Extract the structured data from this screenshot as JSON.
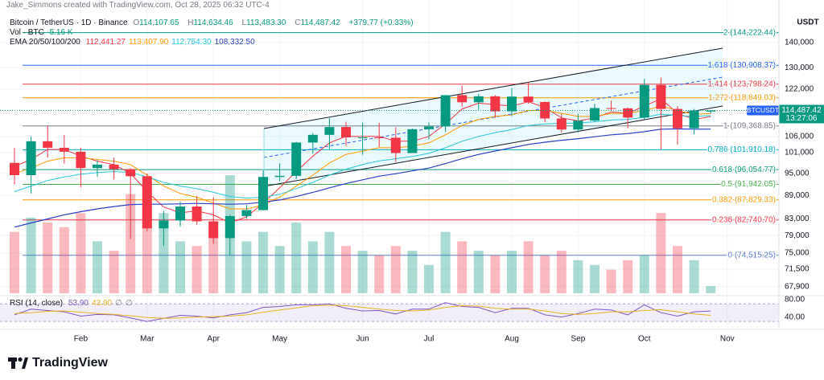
{
  "header": {
    "author": "Jake_Simmons created with TradingView.com, Oct 28, 2025 06:32 UTC-4"
  },
  "legend": {
    "symbol": "Bitcoin / TetherUS · 1D · Binance",
    "ohlc": [
      {
        "key": "O",
        "value": "114,107.65"
      },
      {
        "key": "H",
        "value": "114,634.46"
      },
      {
        "key": "L",
        "value": "113,483.30"
      },
      {
        "key": "C",
        "value": "114,487.42"
      }
    ],
    "change": "+379.77 (+0.33%)",
    "volume_name": "Vol · BTC",
    "volume_value": "5.16 K",
    "ema_name": "EMA 20/50/100/200",
    "ema_values": [
      {
        "value": "112,441.27",
        "color": "#f23645"
      },
      {
        "value": "113,407.90",
        "color": "#ff9800"
      },
      {
        "value": "112,754.30",
        "color": "#26c6da"
      },
      {
        "value": "108,332.50",
        "color": "#2a3fc9"
      }
    ],
    "rsi_name": "RSI (14, close)",
    "rsi_values": [
      {
        "value": "53.90",
        "color": "#7e57c2"
      },
      {
        "value": "43.90",
        "color": "#e6b422"
      },
      {
        "value": "∅",
        "color": "#787b86"
      },
      {
        "value": "∅",
        "color": "#787b86"
      }
    ]
  },
  "axis_unit": "USDT",
  "last_price": {
    "value": 114487.42,
    "label": "114,487.42",
    "symbol": "BTCUSDT",
    "countdown": "13:27:06"
  },
  "footer": {
    "brand": "TradingView"
  },
  "chart_data": [
    {
      "type": "candlestick",
      "categories": [
        null,
        null,
        null,
        null,
        "Feb",
        null,
        null,
        null,
        "Mar",
        null,
        null,
        null,
        "Apr",
        null,
        null,
        null,
        "May",
        null,
        null,
        null,
        null,
        "Jun",
        null,
        null,
        null,
        "Jul",
        null,
        null,
        null,
        null,
        "Aug",
        null,
        null,
        null,
        "Sep",
        null,
        null,
        null,
        "Oct",
        null,
        null,
        null,
        null,
        "Nov"
      ],
      "open": [
        98000,
        94500,
        104500,
        102500,
        101300,
        96500,
        97500,
        96200,
        94200,
        80700,
        82600,
        86100,
        82400,
        78400,
        83700,
        85200,
        94000,
        94300,
        104100,
        106500,
        109000,
        105700,
        105700,
        105600,
        100900,
        108300,
        109200,
        119800,
        117300,
        119400,
        114200,
        119300,
        117400,
        111800,
        108200,
        111100,
        115300,
        115200,
        112100,
        123500,
        115000,
        108600,
        114100,
        null
      ],
      "high": [
        102500,
        106000,
        109500,
        106500,
        102500,
        98800,
        99500,
        96500,
        95000,
        85000,
        87400,
        88800,
        88500,
        84000,
        86500,
        95800,
        97900,
        104300,
        107100,
        111900,
        110700,
        110500,
        110400,
        108900,
        108500,
        110500,
        119900,
        123200,
        120200,
        119800,
        122300,
        124500,
        117600,
        113300,
        113400,
        116800,
        117900,
        115500,
        125700,
        126200,
        116000,
        115000,
        114634,
        null
      ],
      "low": [
        92000,
        89500,
        99500,
        97800,
        91200,
        94000,
        93300,
        78200,
        80000,
        76600,
        81100,
        81600,
        77100,
        74500,
        83000,
        85100,
        92800,
        93400,
        100700,
        102100,
        103100,
        100400,
        102700,
        98200,
        100900,
        105100,
        107400,
        115800,
        114700,
        112000,
        112600,
        116800,
        110600,
        107300,
        107300,
        110600,
        114400,
        108600,
        111500,
        102000,
        103500,
        106600,
        113483,
        null
      ],
      "close": [
        94500,
        104500,
        102500,
        101300,
        96500,
        97500,
        96200,
        94200,
        80700,
        82600,
        86100,
        82400,
        78400,
        83700,
        85200,
        94000,
        94300,
        104100,
        106500,
        109000,
        105700,
        105700,
        105600,
        100900,
        108300,
        109200,
        119800,
        117300,
        119400,
        114200,
        119300,
        117400,
        111800,
        108200,
        111100,
        115300,
        115200,
        112100,
        123500,
        115000,
        108600,
        114500,
        114487.42,
        null
      ],
      "up_color": "#089981",
      "down_color": "#f23645",
      "ylim": [
        66100,
        153300
      ],
      "log_scale": true,
      "yticks": [
        {
          "value": 140000,
          "label": "140,000"
        },
        {
          "value": 130000,
          "label": "130,000"
        },
        {
          "value": 122000,
          "label": "122,000"
        },
        {
          "value": 106000,
          "label": "106,000"
        },
        {
          "value": 101000,
          "label": "101,000"
        },
        {
          "value": 95000,
          "label": "95,000"
        },
        {
          "value": 89000,
          "label": "89,000"
        },
        {
          "value": 83000,
          "label": "83,000"
        },
        {
          "value": 79000,
          "label": "79,000"
        },
        {
          "value": 75000,
          "label": "75,000"
        },
        {
          "value": 71500,
          "label": "71,500"
        },
        {
          "value": 67900,
          "label": "67,900"
        }
      ],
      "grid": true,
      "volume": {
        "values": [
          130,
          160,
          150,
          140,
          170,
          110,
          90,
          210,
          190,
          170,
          110,
          100,
          120,
          250,
          110,
          130,
          100,
          150,
          110,
          130,
          100,
          90,
          80,
          100,
          90,
          60,
          130,
          110,
          90,
          80,
          90,
          110,
          80,
          90,
          70,
          60,
          50,
          70,
          80,
          170,
          100,
          70,
          15,
          null
        ],
        "vlim": [
          0,
          400
        ]
      },
      "ema": [
        {
          "color": "#f23645",
          "values": [
            97000,
            99000,
            102000,
            102000,
            100000,
            98500,
            97500,
            95000,
            90000,
            86000,
            84500,
            85000,
            84000,
            82000,
            83500,
            87000,
            91000,
            95500,
            100000,
            104000,
            106000,
            106000,
            106000,
            104500,
            104500,
            106000,
            110000,
            115000,
            117000,
            116500,
            116000,
            117500,
            115500,
            112000,
            111000,
            112000,
            114000,
            113500,
            116000,
            118500,
            113500,
            111500,
            112441,
            null
          ]
        },
        {
          "color": "#ff9800",
          "values": [
            95000,
            96500,
            98500,
            99500,
            99500,
            99000,
            98500,
            97500,
            94500,
            91500,
            89500,
            88500,
            87000,
            85500,
            85500,
            86500,
            88500,
            91500,
            94500,
            98000,
            100500,
            101500,
            102500,
            102500,
            103000,
            104000,
            106500,
            109500,
            111500,
            112500,
            113000,
            114500,
            114500,
            113500,
            112500,
            112500,
            113500,
            113500,
            114500,
            116000,
            114500,
            113200,
            113408,
            null
          ]
        },
        {
          "color": "#26c6da",
          "values": [
            90000,
            91500,
            93000,
            94000,
            94800,
            95200,
            95500,
            95300,
            94000,
            92500,
            91500,
            90800,
            89800,
            88700,
            88300,
            88500,
            89300,
            90800,
            92500,
            94500,
            96200,
            97500,
            98600,
            99200,
            99900,
            100800,
            102500,
            104500,
            106000,
            107200,
            108200,
            109500,
            110000,
            110200,
            110300,
            110700,
            111300,
            111500,
            112200,
            113200,
            112800,
            112500,
            112754,
            null
          ]
        },
        {
          "color": "#2a3fc9",
          "values": [
            81000,
            82000,
            83000,
            84000,
            84800,
            85500,
            86100,
            86600,
            86700,
            86700,
            86800,
            86900,
            86800,
            86700,
            86800,
            87200,
            87800,
            88700,
            89800,
            91000,
            92200,
            93200,
            94200,
            94900,
            95700,
            96500,
            97800,
            99200,
            100500,
            101500,
            102500,
            103500,
            104200,
            104800,
            105300,
            105900,
            106500,
            106900,
            107500,
            108300,
            108400,
            108300,
            108333,
            null
          ]
        }
      ],
      "fib_levels": [
        {
          "value": 144222.44,
          "label": "2 (144,222.44)",
          "color": "#089981"
        },
        {
          "value": 130908.37,
          "label": "1.618 (130,908.37)",
          "color": "#2962ff"
        },
        {
          "value": 123798.24,
          "label": "1.414 (123,798.24)",
          "color": "#f23645"
        },
        {
          "value": 118849.03,
          "label": "1.272 (118,849.03)",
          "color": "#ff9800"
        },
        {
          "value": 109368.85,
          "label": "1 (109,368.85)",
          "color": "#787b86"
        },
        {
          "value": 101910.18,
          "label": "0.786 (101,910.18)",
          "color": "#00acc1"
        },
        {
          "value": 96054.77,
          "label": "0.618 (96,054.77)",
          "color": "#089981"
        },
        {
          "value": 91942.05,
          "label": "0.5 (91,942.05)",
          "color": "#4caf50"
        },
        {
          "value": 87829.33,
          "label": "0.382 (87,829.33)",
          "color": "#ff9800"
        },
        {
          "value": 82740.7,
          "label": "0.236 (82,740.70)",
          "color": "#f23645"
        },
        {
          "value": 74515.25,
          "label": "0 (74,515.25)",
          "color": "#5b7bd5"
        }
      ]
    },
    {
      "type": "line",
      "ylim": [
        21,
        87
      ],
      "yticks": [
        {
          "value": 80,
          "label": "80.00"
        },
        {
          "value": 40,
          "label": "40.00"
        }
      ],
      "band": [
        30,
        70
      ],
      "band_color": "#7e57c2",
      "series": [
        {
          "color": "#7e57c2",
          "values": [
            45,
            58,
            55,
            52,
            42,
            46,
            45,
            38,
            30,
            37,
            44,
            42,
            38,
            45,
            50,
            62,
            64,
            68,
            68,
            70,
            60,
            54,
            55,
            47,
            58,
            58,
            73,
            64,
            62,
            50,
            60,
            60,
            45,
            40,
            48,
            58,
            56,
            45,
            68,
            50,
            42,
            52,
            53.9,
            null
          ]
        },
        {
          "color": "#e6b422",
          "values": [
            48,
            50,
            53,
            54,
            51,
            48,
            46,
            43,
            39,
            37,
            38,
            40,
            41,
            42,
            45,
            51,
            56,
            61,
            66,
            67,
            66,
            62,
            58,
            55,
            54,
            56,
            62,
            66,
            65,
            60,
            58,
            58,
            54,
            48,
            46,
            48,
            52,
            52,
            55,
            57,
            52,
            47,
            43.9,
            null
          ]
        }
      ]
    }
  ]
}
